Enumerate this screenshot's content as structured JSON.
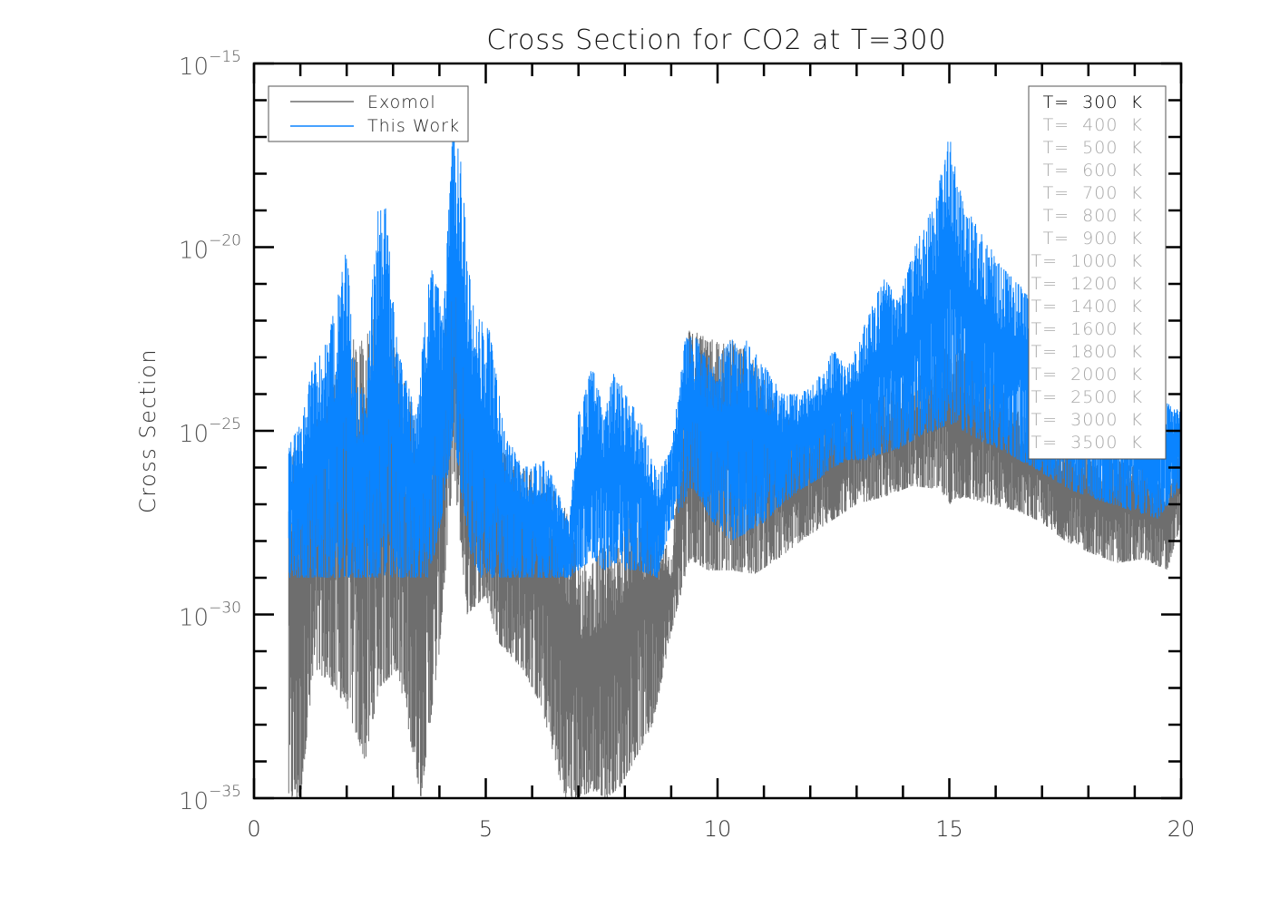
{
  "chart_data": {
    "type": "line",
    "title": "Cross Section for CO2 at T=300",
    "xlabel": "",
    "ylabel": "Cross Section",
    "xlim": [
      0,
      20
    ],
    "ylim": [
      1e-35,
      1e-15
    ],
    "yscale": "log",
    "x_ticks": [
      {
        "value": 0,
        "label": "0"
      },
      {
        "value": 5,
        "label": "5"
      },
      {
        "value": 10,
        "label": "10"
      },
      {
        "value": 15,
        "label": "15"
      },
      {
        "value": 20,
        "label": "20"
      }
    ],
    "y_ticks": [
      {
        "value": -15,
        "base": "10",
        "exp": "−15"
      },
      {
        "value": -20,
        "base": "10",
        "exp": "−20"
      },
      {
        "value": -25,
        "base": "10",
        "exp": "−25"
      },
      {
        "value": -30,
        "base": "10",
        "exp": "−30"
      },
      {
        "value": -35,
        "base": "10",
        "exp": "−35"
      }
    ],
    "grid": false,
    "legend": {
      "placement": "top-left",
      "entries": [
        {
          "label": "Exomol",
          "color": "#6e6e6e"
        },
        {
          "label": "This Work",
          "color": "#0a84ff"
        }
      ]
    },
    "temperature_legend": {
      "placement": "top-right",
      "active_color": "#000000",
      "inactive_color": "#a8a8a8",
      "entries": [
        {
          "label": "T=  300  K",
          "active": true
        },
        {
          "label": "T=  400  K",
          "active": false
        },
        {
          "label": "T=  500  K",
          "active": false
        },
        {
          "label": "T=  600  K",
          "active": false
        },
        {
          "label": "T=  700  K",
          "active": false
        },
        {
          "label": "T=  800  K",
          "active": false
        },
        {
          "label": "T=  900  K",
          "active": false
        },
        {
          "label": "T=  1000  K",
          "active": false
        },
        {
          "label": "T=  1200  K",
          "active": false
        },
        {
          "label": "T=  1400  K",
          "active": false
        },
        {
          "label": "T=  1600  K",
          "active": false
        },
        {
          "label": "T=  1800  K",
          "active": false
        },
        {
          "label": "T=  2000  K",
          "active": false
        },
        {
          "label": "T=  2500  K",
          "active": false
        },
        {
          "label": "T=  3000  K",
          "active": false
        },
        {
          "label": "T=  3500  K",
          "active": false
        }
      ]
    },
    "series": [
      {
        "name": "Exomol",
        "color": "#6e6e6e",
        "envelope_x": [
          0.75,
          1.0,
          1.3,
          1.6,
          2.0,
          2.4,
          2.7,
          3.1,
          3.6,
          4.0,
          4.3,
          4.6,
          5.0,
          5.3,
          5.8,
          6.2,
          6.7,
          7.0,
          7.3,
          7.6,
          7.9,
          8.2,
          8.6,
          9.0,
          9.4,
          9.8,
          10.3,
          10.8,
          11.3,
          11.8,
          12.4,
          13.0,
          13.6,
          14.2,
          14.8,
          15.0,
          15.3,
          15.9,
          16.5,
          17.0,
          17.5,
          18.0,
          18.6,
          19.2,
          19.7,
          20.0
        ],
        "envelope_top": [
          -25.5,
          -25.2,
          -24.8,
          -24.0,
          -22.5,
          -22.5,
          -21.5,
          -23.0,
          -25.0,
          -23.5,
          -19.0,
          -23.5,
          -24.5,
          -25.5,
          -26.0,
          -26.2,
          -27.0,
          -28.5,
          -28.5,
          -28.0,
          -27.8,
          -26.7,
          -26.8,
          -28.5,
          -22.0,
          -22.5,
          -22.5,
          -23.0,
          -24.5,
          -24.8,
          -24.5,
          -24.3,
          -24.0,
          -23.5,
          -23.0,
          -22.3,
          -22.5,
          -23.5,
          -24.5,
          -25.0,
          -25.3,
          -25.6,
          -25.8,
          -26.0,
          -26.5,
          -25.0
        ],
        "envelope_bottom": [
          -35,
          -35,
          -31.5,
          -31.8,
          -32.5,
          -34.0,
          -32.0,
          -31.5,
          -35.0,
          -31.0,
          -26.0,
          -30.0,
          -29.5,
          -30.8,
          -31.5,
          -32.5,
          -35.0,
          -35.0,
          -34.8,
          -35.0,
          -34.7,
          -34.0,
          -33.0,
          -30.5,
          -28.5,
          -28.8,
          -28.8,
          -28.9,
          -28.5,
          -28.0,
          -27.5,
          -27.0,
          -26.8,
          -26.5,
          -26.6,
          -27.0,
          -26.8,
          -27.0,
          -27.2,
          -27.5,
          -28.0,
          -28.3,
          -28.6,
          -28.5,
          -28.8,
          -27.5
        ]
      },
      {
        "name": "This Work",
        "color": "#0a84ff",
        "floor": -29.0,
        "envelope_x": [
          0.75,
          1.0,
          1.3,
          1.6,
          2.0,
          2.2,
          2.4,
          2.7,
          2.85,
          3.1,
          3.5,
          3.8,
          4.1,
          4.3,
          4.45,
          4.7,
          4.9,
          5.1,
          5.4,
          5.8,
          6.3,
          6.8,
          7.0,
          7.3,
          7.55,
          7.8,
          8.0,
          8.3,
          8.7,
          9.0,
          9.3,
          9.4,
          9.6,
          9.9,
          10.3,
          10.6,
          11.0,
          11.4,
          11.8,
          12.2,
          12.5,
          12.8,
          13.2,
          13.6,
          13.9,
          14.3,
          14.7,
          15.0,
          15.3,
          15.7,
          16.1,
          16.5,
          16.8,
          17.2,
          17.6,
          18.0,
          18.5,
          19.0,
          19.5,
          20.0
        ],
        "envelope_top": [
          -25.4,
          -24.8,
          -23.0,
          -22.5,
          -20.0,
          -23.5,
          -24.0,
          -18.0,
          -19.0,
          -22.8,
          -24.5,
          -20.5,
          -21.5,
          -16.5,
          -17.5,
          -21.5,
          -22.0,
          -22.3,
          -25.0,
          -26.0,
          -25.8,
          -27.5,
          -24.5,
          -23.2,
          -24.5,
          -23.2,
          -24.0,
          -24.5,
          -26.2,
          -25.5,
          -22.5,
          -22.4,
          -22.5,
          -23.2,
          -22.5,
          -22.5,
          -23.2,
          -24.0,
          -24.0,
          -23.5,
          -22.8,
          -23.3,
          -22.0,
          -20.8,
          -21.5,
          -19.8,
          -18.8,
          -16.8,
          -18.8,
          -19.5,
          -20.5,
          -21.0,
          -21.5,
          -22.0,
          -22.3,
          -22.5,
          -23.0,
          -23.5,
          -24.0,
          -24.5
        ],
        "envelope_bottom": [
          -29.0,
          -29.0,
          -29.0,
          -29.0,
          -29.0,
          -29.0,
          -29.0,
          -29.0,
          -29.0,
          -29.0,
          -29.0,
          -29.0,
          -27.0,
          -25.0,
          -26.5,
          -28.5,
          -29.0,
          -29.0,
          -29.0,
          -29.0,
          -29.0,
          -29.0,
          -28.8,
          -28.5,
          -28.8,
          -28.6,
          -28.8,
          -28.8,
          -29.0,
          -27.5,
          -27.0,
          -26.5,
          -26.8,
          -27.5,
          -28.0,
          -27.8,
          -27.5,
          -27.0,
          -26.6,
          -26.3,
          -26.0,
          -25.8,
          -25.8,
          -25.6,
          -25.5,
          -25.2,
          -25.0,
          -24.8,
          -25.0,
          -25.3,
          -25.5,
          -25.8,
          -26.0,
          -26.3,
          -26.6,
          -26.8,
          -27.0,
          -27.2,
          -27.4,
          -26.5
        ]
      }
    ]
  }
}
